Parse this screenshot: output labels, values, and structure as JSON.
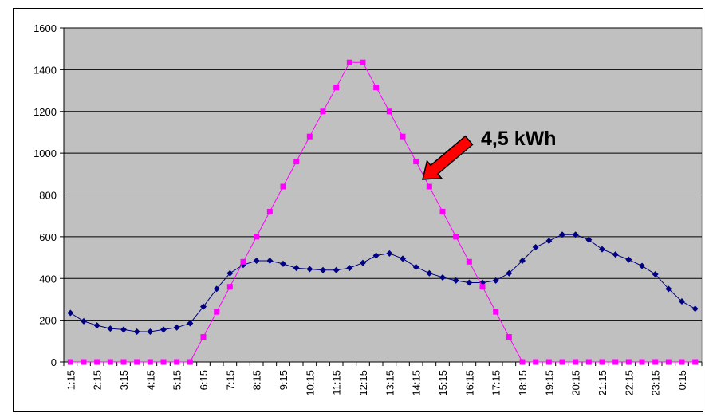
{
  "chart_data": {
    "type": "line",
    "x": [
      "1:15",
      "1:45",
      "2:15",
      "2:45",
      "3:15",
      "3:45",
      "4:15",
      "4:45",
      "5:15",
      "5:45",
      "6:15",
      "6:45",
      "7:15",
      "7:45",
      "8:15",
      "8:45",
      "9:15",
      "9:45",
      "10:15",
      "10:45",
      "11:15",
      "11:45",
      "12:15",
      "12:45",
      "13:15",
      "13:45",
      "14:15",
      "14:45",
      "15:15",
      "15:45",
      "16:15",
      "16:45",
      "17:15",
      "17:45",
      "18:15",
      "18:45",
      "19:15",
      "19:45",
      "20:15",
      "20:45",
      "21:15",
      "21:45",
      "22:15",
      "22:45",
      "23:15",
      "23:45",
      "0:15",
      "0:45"
    ],
    "x_tick_labels": [
      "1:15",
      "2:15",
      "3:15",
      "4:15",
      "5:15",
      "6:15",
      "7:15",
      "8:15",
      "9:15",
      "10:15",
      "11:15",
      "12:15",
      "13:15",
      "14:15",
      "15:15",
      "16:15",
      "17:15",
      "18:15",
      "19:15",
      "20:15",
      "21:15",
      "22:15",
      "23:15",
      "0:15"
    ],
    "ylim": [
      0,
      1600
    ],
    "yticks": [
      0,
      200,
      400,
      600,
      800,
      1000,
      1200,
      1400,
      1600
    ],
    "grid": true,
    "series": [
      {
        "color": "#000080",
        "marker": "diamond",
        "values": [
          235,
          195,
          175,
          160,
          155,
          145,
          145,
          155,
          165,
          185,
          265,
          350,
          425,
          465,
          485,
          485,
          470,
          450,
          445,
          440,
          440,
          450,
          475,
          510,
          520,
          495,
          455,
          425,
          405,
          390,
          380,
          380,
          390,
          425,
          485,
          550,
          580,
          610,
          610,
          585,
          540,
          515,
          490,
          460,
          420,
          350,
          290,
          255
        ]
      },
      {
        "color": "#ff00ff",
        "marker": "square",
        "values": [
          0,
          0,
          0,
          0,
          0,
          0,
          0,
          0,
          0,
          0,
          120,
          240,
          360,
          480,
          600,
          720,
          840,
          960,
          1080,
          1200,
          1315,
          1435,
          1435,
          1315,
          1200,
          1080,
          960,
          840,
          720,
          600,
          480,
          360,
          240,
          120,
          0,
          0,
          0,
          0,
          0,
          0,
          0,
          0,
          0,
          0,
          0,
          0,
          0,
          0
        ]
      }
    ],
    "annotation": {
      "text": "4,5 kWh",
      "arrow_color": "#ff0000"
    }
  }
}
